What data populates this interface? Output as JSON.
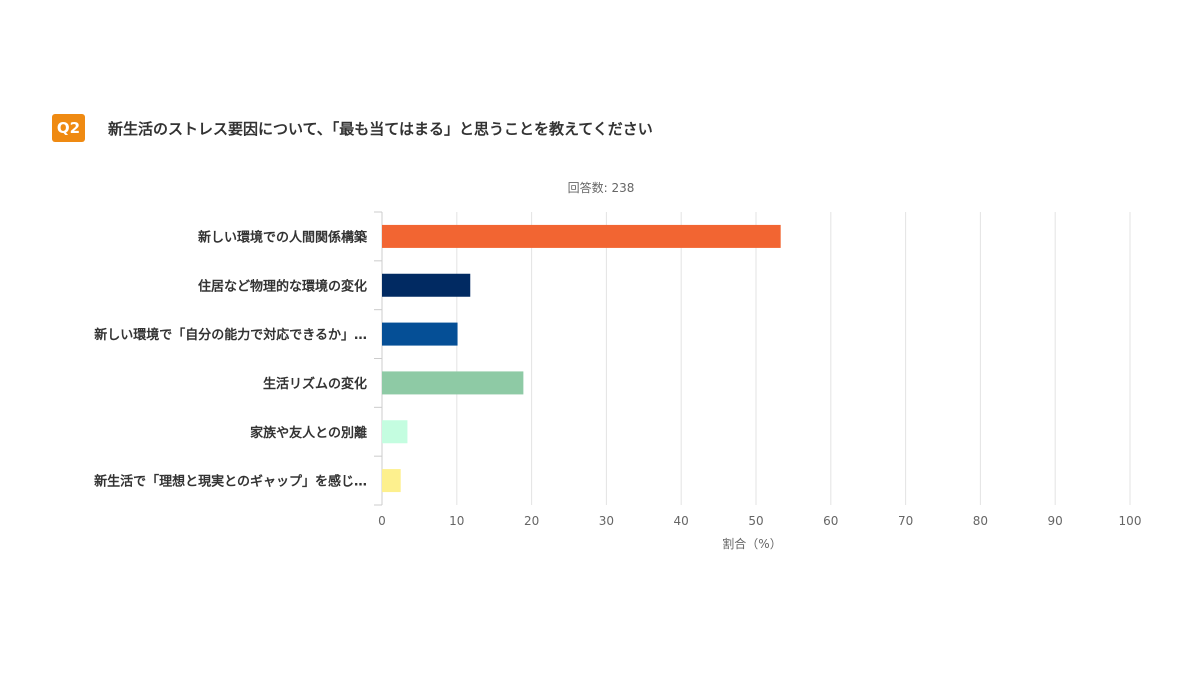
{
  "question": {
    "badge": "Q2",
    "badge_color": "#ef8a12",
    "title": "新生活のストレス要因について、「最も当てはまる」と思うことを教えてください"
  },
  "chart_data": {
    "type": "bar",
    "orientation": "horizontal",
    "response_count_label": "回答数: 238",
    "categories": [
      "新しい環境での人間関係構築",
      "住居など物理的な環境の変化",
      "新しい環境で「自分の能力で対応できるか」…",
      "生活リズムの変化",
      "家族や友人との別離",
      "新生活で「理想と現実とのギャップ」を感じ…"
    ],
    "values": [
      53.3,
      11.8,
      10.1,
      18.9,
      3.4,
      2.5
    ],
    "colors": [
      "#f26532",
      "#012a62",
      "#054f96",
      "#8ecaa5",
      "#c4fde0",
      "#fdf08e"
    ],
    "xlim": [
      0,
      100
    ],
    "xticks": [
      "0",
      "10",
      "20",
      "30",
      "40",
      "50",
      "60",
      "70",
      "80",
      "90",
      "100"
    ],
    "xlabel": "割合（%）",
    "grid": true
  }
}
